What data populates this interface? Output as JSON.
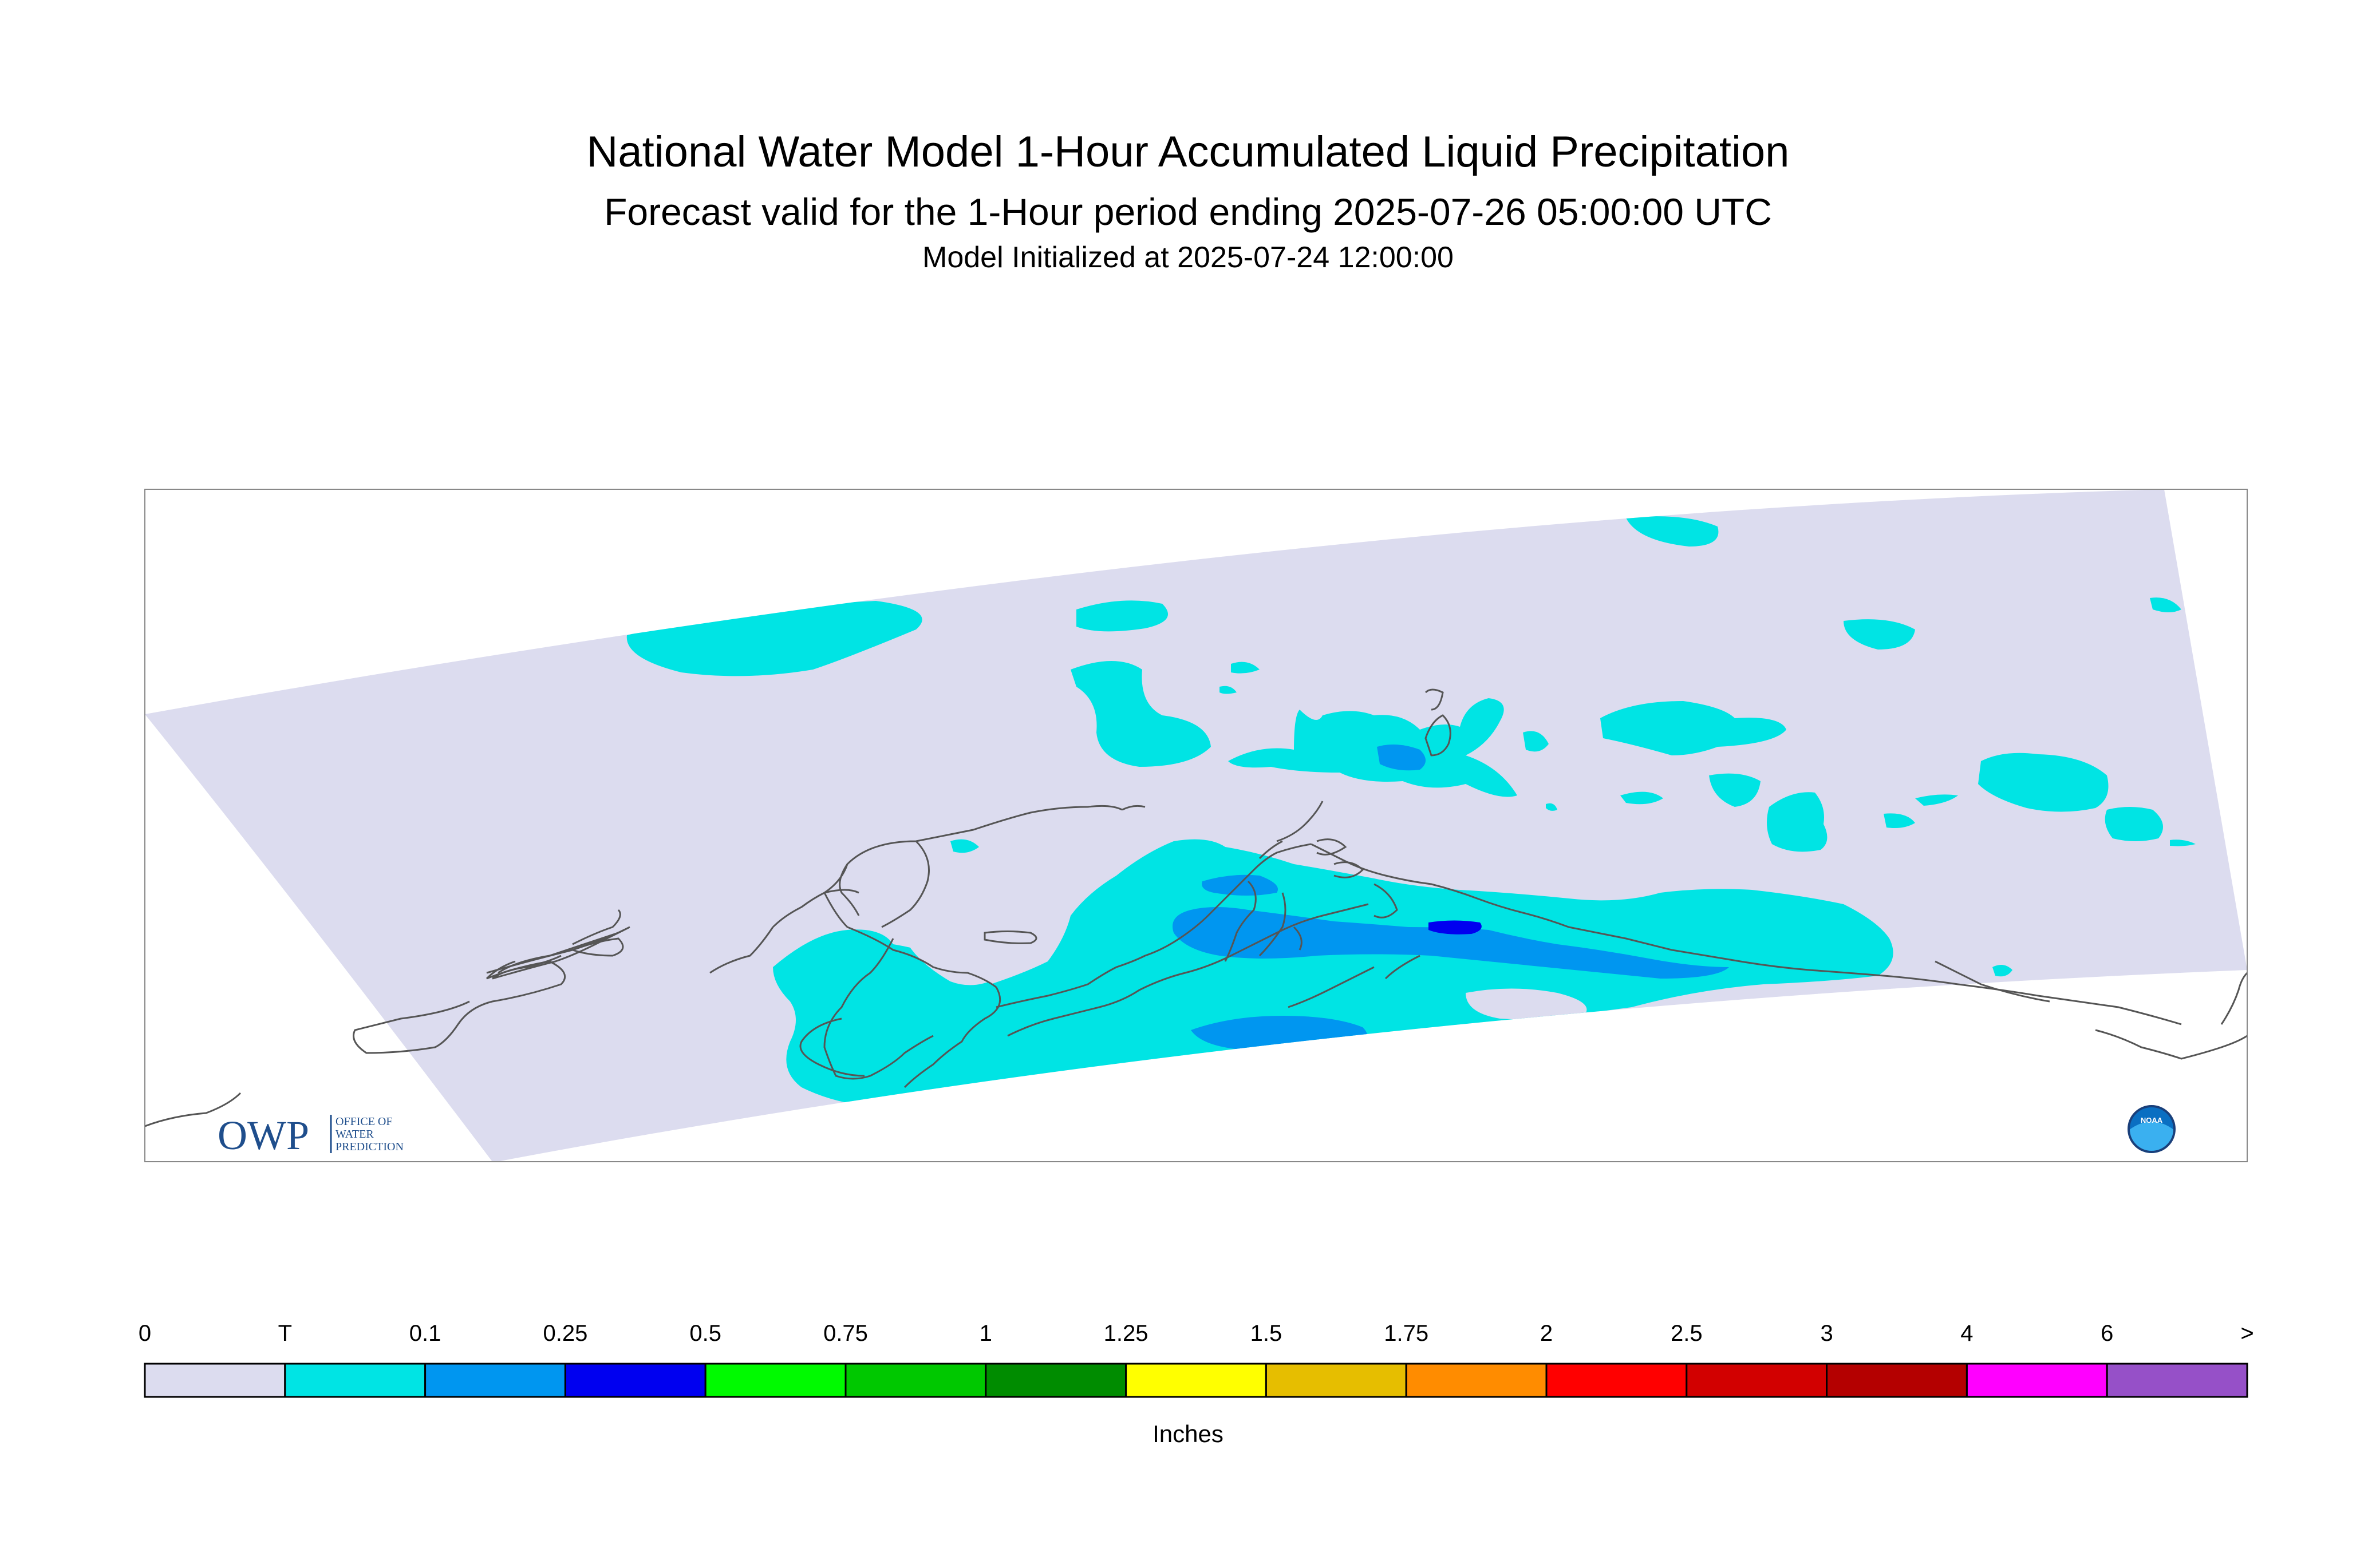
{
  "title": "National Water Model 1-Hour Accumulated Liquid Precipitation",
  "subtitle": "Forecast valid for the 1-Hour period ending 2025-07-26 05:00:00 UTC",
  "initialized": "Model Initialized at 2025-07-24 12:00:00",
  "legend": {
    "title": "Inches",
    "labels": [
      "0",
      "T",
      "0.1",
      "0.25",
      "0.5",
      "0.75",
      "1",
      "1.25",
      "1.5",
      "1.75",
      "2",
      "2.5",
      "3",
      "4",
      "6",
      ">"
    ],
    "colors": [
      "#dcdcef",
      "#00e4e4",
      "#0096f0",
      "#0000f0",
      "#00fa00",
      "#00c800",
      "#008c00",
      "#ffff00",
      "#e6be00",
      "#ff8c00",
      "#ff0000",
      "#d20000",
      "#b40000",
      "#ff00ff",
      "#9650c8"
    ]
  },
  "logos": {
    "owp_name": "OWP",
    "owp_lines": [
      "OFFICE OF",
      "WATER",
      "PREDICTION"
    ],
    "noaa": "NOAA"
  }
}
